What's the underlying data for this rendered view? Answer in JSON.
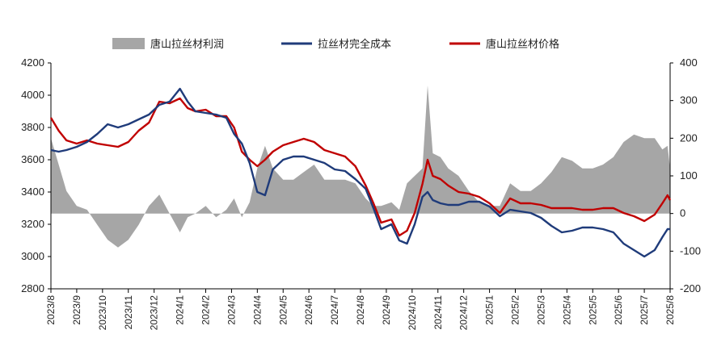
{
  "chart_data": {
    "type": "line+area",
    "title": "",
    "legend": [
      {
        "name": "唐山拉丝材利润",
        "kind": "area",
        "axis": "right",
        "color": "#a6a6a6"
      },
      {
        "name": "拉丝材完全成本",
        "kind": "line",
        "axis": "left",
        "color": "#1f3b7a"
      },
      {
        "name": "唐山拉丝材价格",
        "kind": "line",
        "axis": "left",
        "color": "#c00000"
      }
    ],
    "legend_position": "top",
    "left_axis": {
      "min": 2800,
      "max": 4200,
      "step": 200,
      "ticks": [
        "2800",
        "3000",
        "3200",
        "3400",
        "3600",
        "3800",
        "4000",
        "4200"
      ]
    },
    "right_axis": {
      "min": -200,
      "max": 400,
      "step": 100,
      "ticks": [
        "-200",
        "-100",
        "0",
        "100",
        "200",
        "300",
        "400"
      ]
    },
    "x_categories": [
      "2023/8",
      "2023/9",
      "2023/10",
      "2023/11",
      "2023/12",
      "2024/1",
      "2024/2",
      "2024/3",
      "2024/4",
      "2024/5",
      "2024/6",
      "2024/7",
      "2024/8",
      "2024/9",
      "2024/10",
      "2024/11",
      "2024/12",
      "2025/1",
      "2025/2",
      "2025/3",
      "2025/4",
      "2025/5",
      "2025/6",
      "2025/7",
      "2025/8"
    ],
    "series": [
      {
        "name": "唐山拉丝材价格",
        "axis": "left",
        "points": [
          [
            0,
            3860
          ],
          [
            0.3,
            3780
          ],
          [
            0.6,
            3720
          ],
          [
            1,
            3700
          ],
          [
            1.4,
            3720
          ],
          [
            1.8,
            3700
          ],
          [
            2.2,
            3690
          ],
          [
            2.6,
            3680
          ],
          [
            3,
            3710
          ],
          [
            3.4,
            3780
          ],
          [
            3.8,
            3830
          ],
          [
            4.2,
            3960
          ],
          [
            4.6,
            3950
          ],
          [
            5,
            3980
          ],
          [
            5.3,
            3920
          ],
          [
            5.6,
            3900
          ],
          [
            6,
            3910
          ],
          [
            6.4,
            3870
          ],
          [
            6.8,
            3870
          ],
          [
            7.1,
            3800
          ],
          [
            7.4,
            3650
          ],
          [
            7.7,
            3600
          ],
          [
            8,
            3560
          ],
          [
            8.3,
            3600
          ],
          [
            8.6,
            3650
          ],
          [
            9,
            3690
          ],
          [
            9.4,
            3710
          ],
          [
            9.8,
            3730
          ],
          [
            10.2,
            3710
          ],
          [
            10.6,
            3660
          ],
          [
            11,
            3640
          ],
          [
            11.4,
            3620
          ],
          [
            11.8,
            3560
          ],
          [
            12.2,
            3440
          ],
          [
            12.5,
            3330
          ],
          [
            12.8,
            3210
          ],
          [
            13.2,
            3230
          ],
          [
            13.5,
            3130
          ],
          [
            13.8,
            3160
          ],
          [
            14.1,
            3270
          ],
          [
            14.4,
            3450
          ],
          [
            14.6,
            3600
          ],
          [
            14.8,
            3500
          ],
          [
            15.1,
            3480
          ],
          [
            15.4,
            3440
          ],
          [
            15.8,
            3400
          ],
          [
            16.2,
            3390
          ],
          [
            16.6,
            3370
          ],
          [
            17,
            3330
          ],
          [
            17.4,
            3270
          ],
          [
            17.8,
            3360
          ],
          [
            18.2,
            3330
          ],
          [
            18.6,
            3330
          ],
          [
            19,
            3320
          ],
          [
            19.4,
            3300
          ],
          [
            19.8,
            3300
          ],
          [
            20.2,
            3300
          ],
          [
            20.6,
            3290
          ],
          [
            21,
            3290
          ],
          [
            21.4,
            3300
          ],
          [
            21.8,
            3300
          ],
          [
            22.2,
            3270
          ],
          [
            22.6,
            3250
          ],
          [
            23,
            3220
          ],
          [
            23.4,
            3260
          ],
          [
            23.7,
            3330
          ],
          [
            23.9,
            3380
          ],
          [
            24,
            3350
          ]
        ]
      },
      {
        "name": "拉丝材完全成本",
        "axis": "left",
        "points": [
          [
            0,
            3660
          ],
          [
            0.3,
            3650
          ],
          [
            0.6,
            3660
          ],
          [
            1,
            3680
          ],
          [
            1.4,
            3710
          ],
          [
            1.8,
            3760
          ],
          [
            2.2,
            3820
          ],
          [
            2.6,
            3800
          ],
          [
            3,
            3820
          ],
          [
            3.4,
            3850
          ],
          [
            3.8,
            3880
          ],
          [
            4.2,
            3940
          ],
          [
            4.6,
            3960
          ],
          [
            5,
            4040
          ],
          [
            5.3,
            3960
          ],
          [
            5.6,
            3900
          ],
          [
            6,
            3890
          ],
          [
            6.4,
            3880
          ],
          [
            6.8,
            3860
          ],
          [
            7.1,
            3760
          ],
          [
            7.4,
            3700
          ],
          [
            7.7,
            3580
          ],
          [
            8,
            3400
          ],
          [
            8.3,
            3380
          ],
          [
            8.6,
            3540
          ],
          [
            9,
            3600
          ],
          [
            9.4,
            3620
          ],
          [
            9.8,
            3620
          ],
          [
            10.2,
            3600
          ],
          [
            10.6,
            3580
          ],
          [
            11,
            3540
          ],
          [
            11.4,
            3530
          ],
          [
            11.8,
            3480
          ],
          [
            12.2,
            3420
          ],
          [
            12.5,
            3300
          ],
          [
            12.8,
            3170
          ],
          [
            13.2,
            3200
          ],
          [
            13.5,
            3100
          ],
          [
            13.8,
            3080
          ],
          [
            14.1,
            3200
          ],
          [
            14.4,
            3370
          ],
          [
            14.6,
            3400
          ],
          [
            14.8,
            3350
          ],
          [
            15.1,
            3330
          ],
          [
            15.4,
            3320
          ],
          [
            15.8,
            3320
          ],
          [
            16.2,
            3340
          ],
          [
            16.6,
            3340
          ],
          [
            17,
            3310
          ],
          [
            17.4,
            3250
          ],
          [
            17.8,
            3290
          ],
          [
            18.2,
            3280
          ],
          [
            18.6,
            3270
          ],
          [
            19,
            3240
          ],
          [
            19.4,
            3190
          ],
          [
            19.8,
            3150
          ],
          [
            20.2,
            3160
          ],
          [
            20.6,
            3180
          ],
          [
            21,
            3180
          ],
          [
            21.4,
            3170
          ],
          [
            21.8,
            3150
          ],
          [
            22.2,
            3080
          ],
          [
            22.6,
            3040
          ],
          [
            23,
            3000
          ],
          [
            23.4,
            3040
          ],
          [
            23.7,
            3120
          ],
          [
            23.9,
            3170
          ],
          [
            24,
            3170
          ]
        ]
      },
      {
        "name": "唐山拉丝材利润",
        "axis": "right",
        "points": [
          [
            0,
            200
          ],
          [
            0.3,
            130
          ],
          [
            0.6,
            60
          ],
          [
            1,
            20
          ],
          [
            1.4,
            10
          ],
          [
            1.8,
            -30
          ],
          [
            2.2,
            -70
          ],
          [
            2.6,
            -90
          ],
          [
            3,
            -70
          ],
          [
            3.4,
            -30
          ],
          [
            3.8,
            20
          ],
          [
            4.2,
            50
          ],
          [
            4.6,
            0
          ],
          [
            5,
            -50
          ],
          [
            5.3,
            -10
          ],
          [
            5.6,
            0
          ],
          [
            6,
            20
          ],
          [
            6.4,
            -10
          ],
          [
            6.8,
            10
          ],
          [
            7.1,
            40
          ],
          [
            7.4,
            -10
          ],
          [
            7.7,
            30
          ],
          [
            8,
            120
          ],
          [
            8.3,
            180
          ],
          [
            8.6,
            120
          ],
          [
            9,
            90
          ],
          [
            9.4,
            90
          ],
          [
            9.8,
            110
          ],
          [
            10.2,
            130
          ],
          [
            10.6,
            90
          ],
          [
            11,
            90
          ],
          [
            11.4,
            90
          ],
          [
            11.8,
            80
          ],
          [
            12.2,
            40
          ],
          [
            12.5,
            20
          ],
          [
            12.8,
            20
          ],
          [
            13.2,
            30
          ],
          [
            13.5,
            10
          ],
          [
            13.8,
            80
          ],
          [
            14.1,
            100
          ],
          [
            14.4,
            120
          ],
          [
            14.6,
            340
          ],
          [
            14.8,
            160
          ],
          [
            15.1,
            150
          ],
          [
            15.4,
            120
          ],
          [
            15.8,
            100
          ],
          [
            16.2,
            60
          ],
          [
            16.6,
            30
          ],
          [
            17,
            20
          ],
          [
            17.4,
            20
          ],
          [
            17.8,
            80
          ],
          [
            18.2,
            60
          ],
          [
            18.6,
            60
          ],
          [
            19,
            80
          ],
          [
            19.4,
            110
          ],
          [
            19.8,
            150
          ],
          [
            20.2,
            140
          ],
          [
            20.6,
            120
          ],
          [
            21,
            120
          ],
          [
            21.4,
            130
          ],
          [
            21.8,
            150
          ],
          [
            22.2,
            190
          ],
          [
            22.6,
            210
          ],
          [
            23,
            200
          ],
          [
            23.4,
            200
          ],
          [
            23.7,
            170
          ],
          [
            23.9,
            180
          ],
          [
            24,
            120
          ]
        ]
      }
    ]
  }
}
